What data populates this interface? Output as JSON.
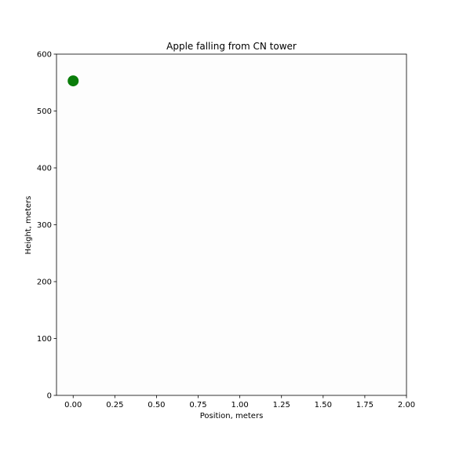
{
  "chart_data": {
    "type": "scatter",
    "title": "Apple falling from CN tower",
    "xlabel": "Position, meters",
    "ylabel": "Height, meters",
    "xlim": [
      -0.1,
      2.0
    ],
    "ylim": [
      0,
      600
    ],
    "xticks": [
      "0.00",
      "0.25",
      "0.50",
      "0.75",
      "1.00",
      "1.25",
      "1.50",
      "1.75",
      "2.00"
    ],
    "yticks": [
      "0",
      "100",
      "200",
      "300",
      "400",
      "500",
      "600"
    ],
    "grid": false,
    "series": [
      {
        "color": "#0a7d0a",
        "points": [
          {
            "x": 0.0,
            "y": 553
          }
        ]
      }
    ]
  }
}
